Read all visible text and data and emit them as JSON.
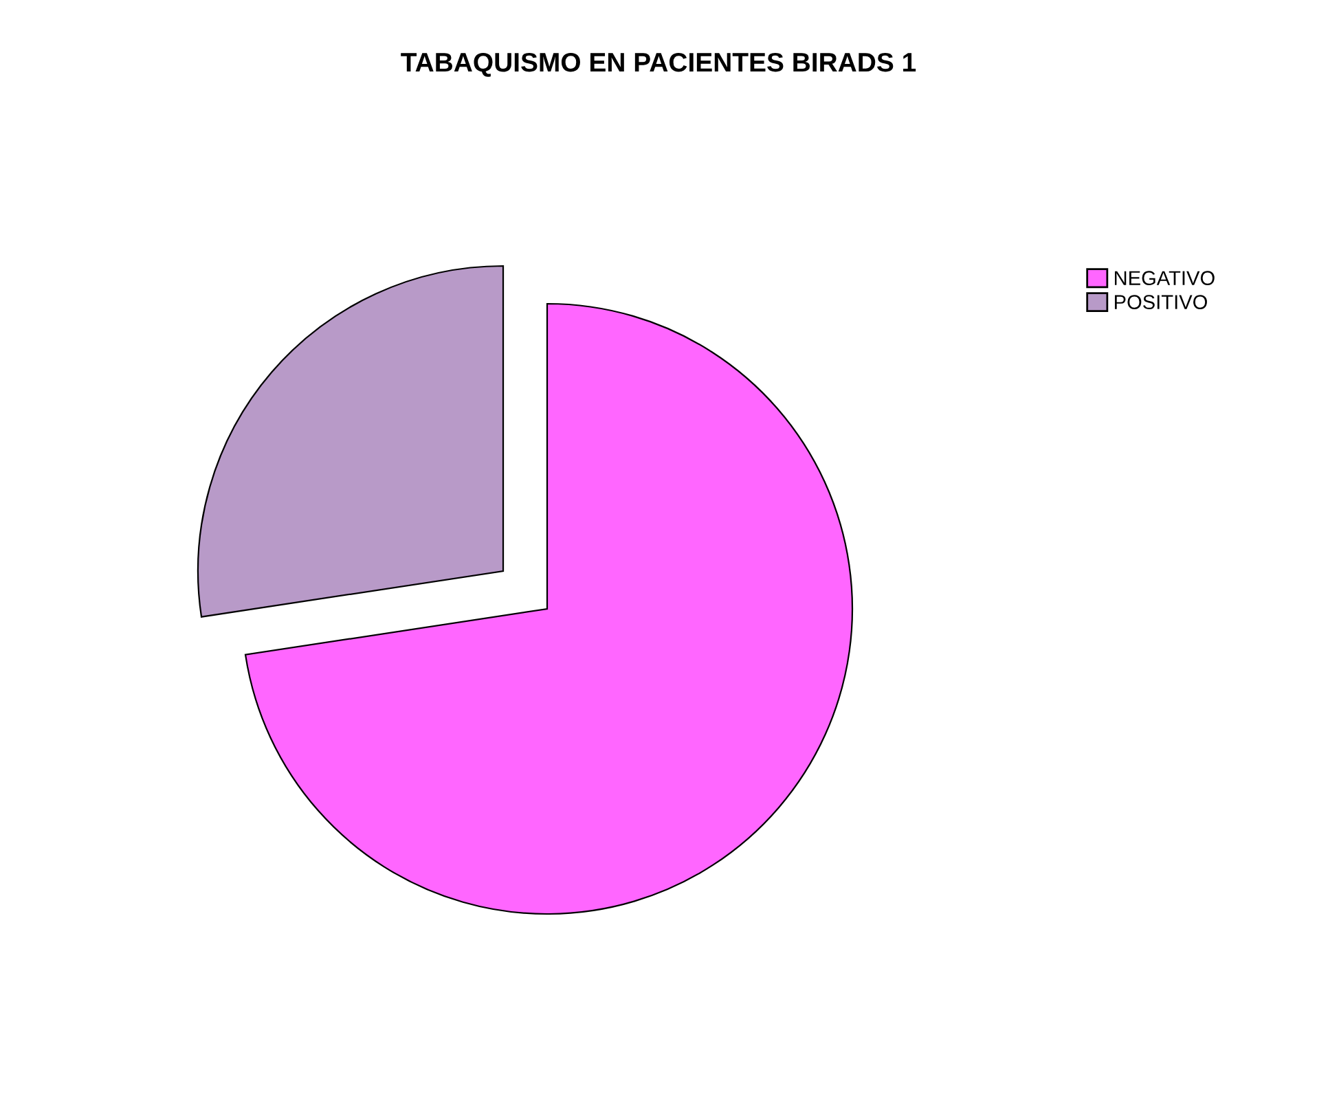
{
  "chart_data": {
    "type": "pie",
    "title": "TABAQUISMO EN PACIENTES BIRADS 1",
    "categories": [
      "NEGATIVO",
      "POSITIVO"
    ],
    "values": [
      72.6,
      27.4
    ],
    "colors": [
      "#ff66ff",
      "#b89ac8"
    ],
    "legend": "right"
  }
}
